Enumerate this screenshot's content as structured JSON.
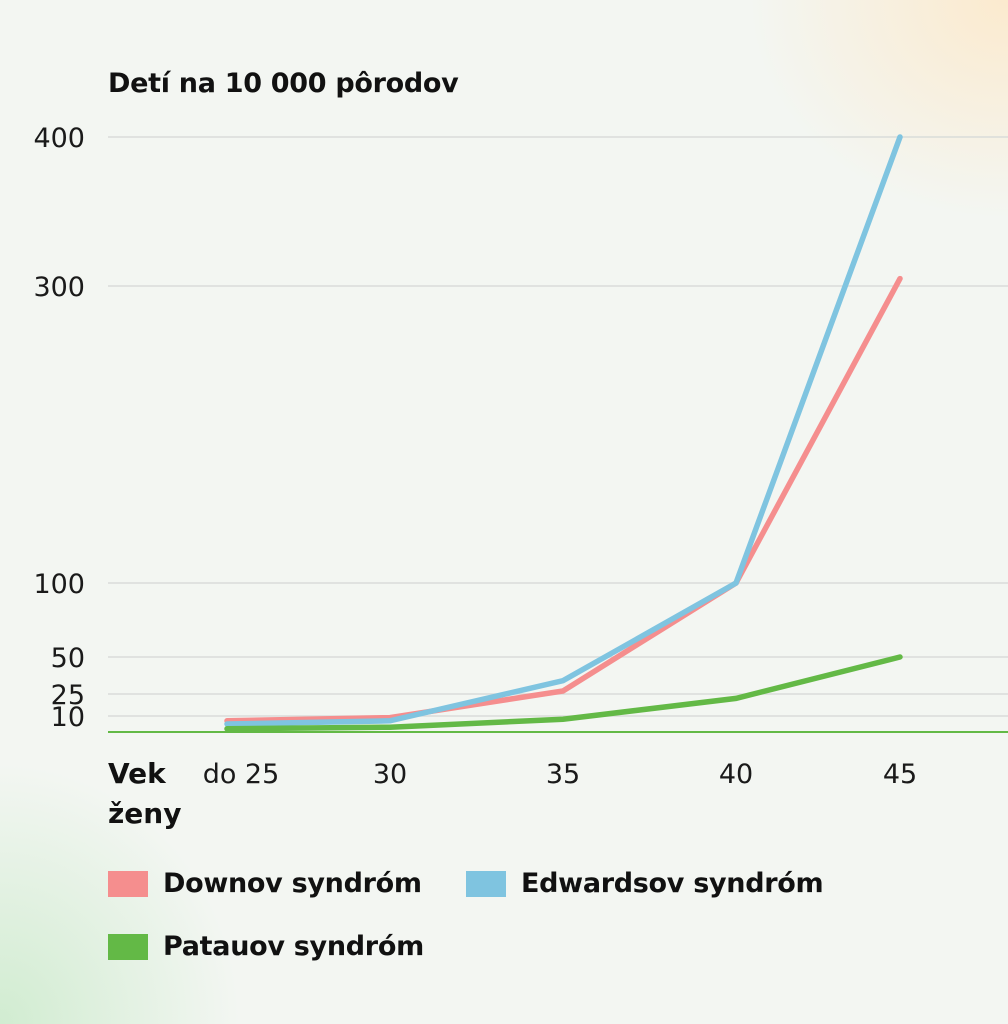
{
  "chart_data": {
    "type": "line",
    "title": "Detí na 10 000 pôrodov",
    "xlabel": "Vek ženy",
    "xlabel_lines": [
      "Vek",
      "ženy"
    ],
    "ylabel": "Detí na 10 000 pôrodov",
    "categories": [
      "do 25",
      "30",
      "35",
      "40",
      "45"
    ],
    "y_ticks": [
      10,
      25,
      50,
      100,
      300,
      400
    ],
    "y_scale": "non-linear (compressed low range)",
    "ylim": [
      0,
      400
    ],
    "grid": true,
    "legend_position": "bottom",
    "series": [
      {
        "name": "Downov syndróm",
        "color": "#f58e8e",
        "values": [
          7,
          9,
          27,
          100,
          305
        ]
      },
      {
        "name": "Edwardsov syndróm",
        "color": "#7fc4e0",
        "values": [
          5,
          7,
          34,
          100,
          400
        ]
      },
      {
        "name": "Patauov syndróm",
        "color": "#63b946",
        "values": [
          2,
          3,
          8,
          22,
          50
        ]
      }
    ]
  }
}
